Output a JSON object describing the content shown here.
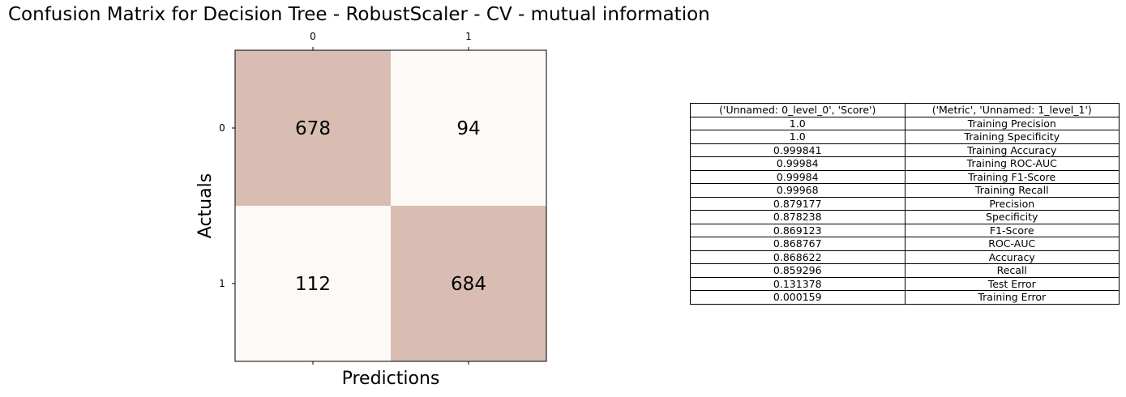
{
  "title": "Confusion Matrix for Decision Tree - RobustScaler - CV - mutual information",
  "chart_data": [
    {
      "type": "heatmap",
      "xlabel": "Predictions",
      "ylabel": "Actuals",
      "x_ticks": [
        "0",
        "1"
      ],
      "y_ticks": [
        "0",
        "1"
      ],
      "matrix": [
        [
          678,
          94
        ],
        [
          112,
          684
        ]
      ],
      "colors": {
        "high": "#d9bdb3",
        "low": "#fdf9f6"
      }
    },
    {
      "type": "table",
      "columns": [
        "('Unnamed: 0_level_0', 'Score')",
        "('Metric', 'Unnamed: 1_level_1')"
      ],
      "rows": [
        [
          "1.0",
          "Training Precision"
        ],
        [
          "1.0",
          "Training Specificity"
        ],
        [
          "0.999841",
          "Training Accuracy"
        ],
        [
          "0.99984",
          "Training ROC-AUC"
        ],
        [
          "0.99984",
          "Training F1-Score"
        ],
        [
          "0.99968",
          "Training Recall"
        ],
        [
          "0.879177",
          "Precision"
        ],
        [
          "0.878238",
          "Specificity"
        ],
        [
          "0.869123",
          "F1-Score"
        ],
        [
          "0.868767",
          "ROC-AUC"
        ],
        [
          "0.868622",
          "Accuracy"
        ],
        [
          "0.859296",
          "Recall"
        ],
        [
          "0.131378",
          "Test Error"
        ],
        [
          "0.000159",
          "Training Error"
        ]
      ]
    }
  ]
}
